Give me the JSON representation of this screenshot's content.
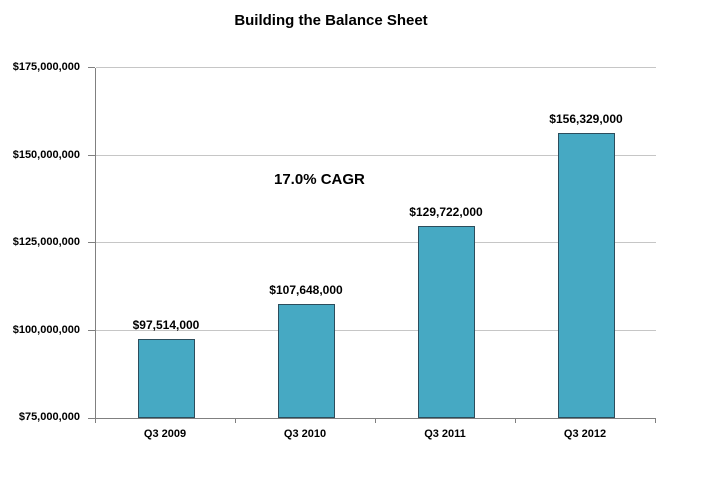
{
  "chart": {
    "title": "Building the Balance Sheet",
    "annotation": "17.0% CAGR"
  },
  "chart_data": {
    "type": "bar",
    "title": "Building the Balance Sheet",
    "categories": [
      "Q3 2009",
      "Q3 2010",
      "Q3 2011",
      "Q3 2012"
    ],
    "values": [
      97514000,
      107648000,
      129722000,
      156329000
    ],
    "data_labels": [
      "$97,514,000",
      "$107,648,000",
      "$129,722,000",
      "$156,329,000"
    ],
    "annotation": "17.0% CAGR",
    "xlabel": "",
    "ylabel": "",
    "ylim": [
      75000000,
      175000000
    ],
    "yticks": [
      75000000,
      100000000,
      125000000,
      150000000,
      175000000
    ],
    "ytick_labels": [
      "$75,000,000",
      "$100,000,000",
      "$125,000,000",
      "$150,000,000",
      "$175,000,000"
    ],
    "grid": true,
    "legend": false,
    "colors": {
      "bar_fill": "#46A9C3",
      "bar_border": "#2C4D5C",
      "gridline": "#C6C6C6",
      "axis": "#808080",
      "text": "#000000",
      "background": "#FFFFFF"
    }
  }
}
